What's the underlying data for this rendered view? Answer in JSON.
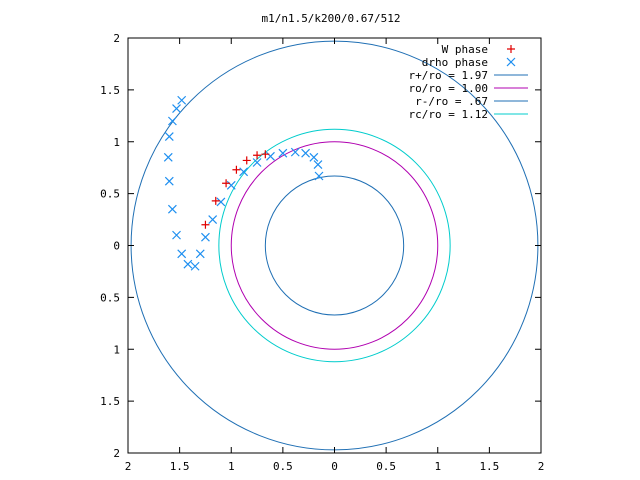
{
  "chart_data": {
    "type": "scatter",
    "title": "m1/n1.5/k200/0.67/512",
    "xlabel": "",
    "ylabel": "",
    "xlim": [
      -2,
      2
    ],
    "ylim": [
      -2,
      2
    ],
    "grid": false,
    "legend_position": "top-right",
    "x_tick_values": [
      -2,
      -1.5,
      -1,
      -0.5,
      0,
      0.5,
      1,
      1.5,
      2
    ],
    "x_tick_labels": [
      "2",
      "1.5",
      "1",
      "0.5",
      "0",
      "0.5",
      "1",
      "1.5",
      "2"
    ],
    "y_tick_values": [
      2,
      1.5,
      1,
      0.5,
      0,
      -0.5,
      -1,
      -1.5,
      -2
    ],
    "y_tick_labels": [
      "2",
      "1.5",
      "1",
      "0.5",
      "0",
      "0.5",
      "1",
      "1.5",
      "2"
    ],
    "circles": [
      {
        "name": "r+/ro = 1.97",
        "radius": 1.97,
        "color": "#1f6fb4"
      },
      {
        "name": "ro/ro = 1.00",
        "radius": 1.0,
        "color": "#b000b0"
      },
      {
        "name": "r-/ro = .67",
        "radius": 0.67,
        "color": "#1f6fb4"
      },
      {
        "name": "rc/ro = 1.12",
        "radius": 1.12,
        "color": "#00cccc"
      }
    ],
    "series": [
      {
        "name": "W phase",
        "marker": "plus",
        "color": "#e00000",
        "x": [
          -0.67,
          -0.75,
          -0.85,
          -0.95,
          -1.05,
          -1.15,
          -1.25
        ],
        "y": [
          0.88,
          0.87,
          0.82,
          0.73,
          0.6,
          0.43,
          0.2
        ]
      },
      {
        "name": "drho phase",
        "marker": "x",
        "color": "#1e8ff0",
        "x": [
          -0.15,
          -0.16,
          -0.2,
          -0.28,
          -0.38,
          -0.5,
          -0.62,
          -0.75,
          -0.88,
          -1.0,
          -1.1,
          -1.18,
          -1.25,
          -1.3,
          -1.35,
          -1.42,
          -1.48,
          -1.53,
          -1.57,
          -1.6,
          -1.61,
          -1.6,
          -1.57,
          -1.53,
          -1.48
        ],
        "y": [
          0.67,
          0.78,
          0.85,
          0.89,
          0.9,
          0.89,
          0.86,
          0.8,
          0.71,
          0.58,
          0.42,
          0.25,
          0.08,
          -0.08,
          -0.2,
          -0.18,
          -0.08,
          0.1,
          0.35,
          0.62,
          0.85,
          1.05,
          1.2,
          1.32,
          1.4
        ]
      }
    ]
  }
}
